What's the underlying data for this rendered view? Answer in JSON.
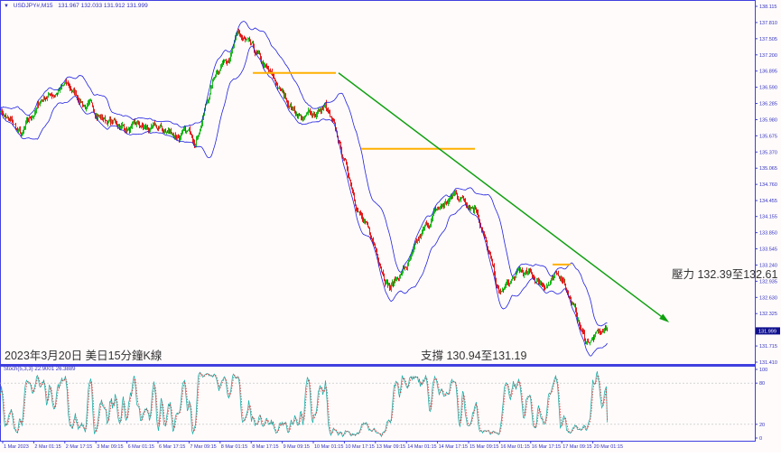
{
  "header": {
    "symbol": "USDJPY#,M15",
    "ohlc": "131.967 132.033 131.912 131.999"
  },
  "annotations": {
    "title": "2023年3月20日 美日15分鐘K線",
    "resistance": "壓力 132.39至132.61",
    "support": "支撐 130.94至131.19"
  },
  "colors": {
    "bull": "#00b000",
    "bear": "#e00000",
    "bands": "#2020e0",
    "levels": "#ffb000",
    "trend": "#10a010",
    "stoch_main": "#20b2aa",
    "stoch_signal": "#e03030",
    "axis": "#4040e0"
  },
  "chart_data": [
    {
      "type": "candlestick",
      "symbol": "USDJPY#",
      "timeframe": "M15",
      "indicators": [
        "Bollinger Bands"
      ],
      "ylim": [
        131.41,
        138.115
      ],
      "y_ticks": [
        "138.115",
        "137.810",
        "137.505",
        "137.200",
        "136.895",
        "136.590",
        "136.285",
        "135.980",
        "135.675",
        "135.370",
        "135.065",
        "134.760",
        "134.455",
        "134.155",
        "133.850",
        "133.545",
        "133.240",
        "132.935",
        "132.630",
        "132.325",
        "131.715",
        "131.410"
      ],
      "current_price": "131.999",
      "x_ticks": [
        "1 Mar 2023",
        "2 Mar 01:15",
        "2 Mar 17:15",
        "3 Mar 09:15",
        "6 Mar 01:15",
        "6 Mar 17:15",
        "7 Mar 09:15",
        "8 Mar 01:15",
        "8 Mar 17:15",
        "9 Mar 09:15",
        "10 Mar 01:15",
        "10 Mar 17:15",
        "13 Mar 09:15",
        "14 Mar 01:15",
        "14 Mar 17:15",
        "15 Mar 09:15",
        "16 Mar 01:15",
        "16 Mar 17:15",
        "17 Mar 09:15",
        "20 Mar 01:15"
      ],
      "close_path_evenly_spaced": [
        136.19,
        135.63,
        136.4,
        136.61,
        136.24,
        135.96,
        135.81,
        135.74,
        135.71,
        135.65,
        136.95,
        137.57,
        136.99,
        136.43,
        136.0,
        136.22,
        135.0,
        133.79,
        132.89,
        133.35,
        134.15,
        134.56,
        134.4,
        132.65,
        133.06,
        132.9,
        133.0,
        131.8,
        131.999
      ],
      "horizontal_levels": [
        136.86,
        135.43,
        133.25
      ],
      "trendline": {
        "from": 136.86,
        "to": 132.2,
        "direction": "down"
      }
    },
    {
      "type": "line",
      "indicator": "Stochastic",
      "label": "Stoch(5,3,3)",
      "main_value": "22.9001",
      "signal_value": "26.3889",
      "ylim": [
        0,
        100
      ],
      "y_ticks": [
        "100",
        "80",
        "20",
        "0"
      ],
      "levels": [
        80,
        20
      ]
    }
  ]
}
